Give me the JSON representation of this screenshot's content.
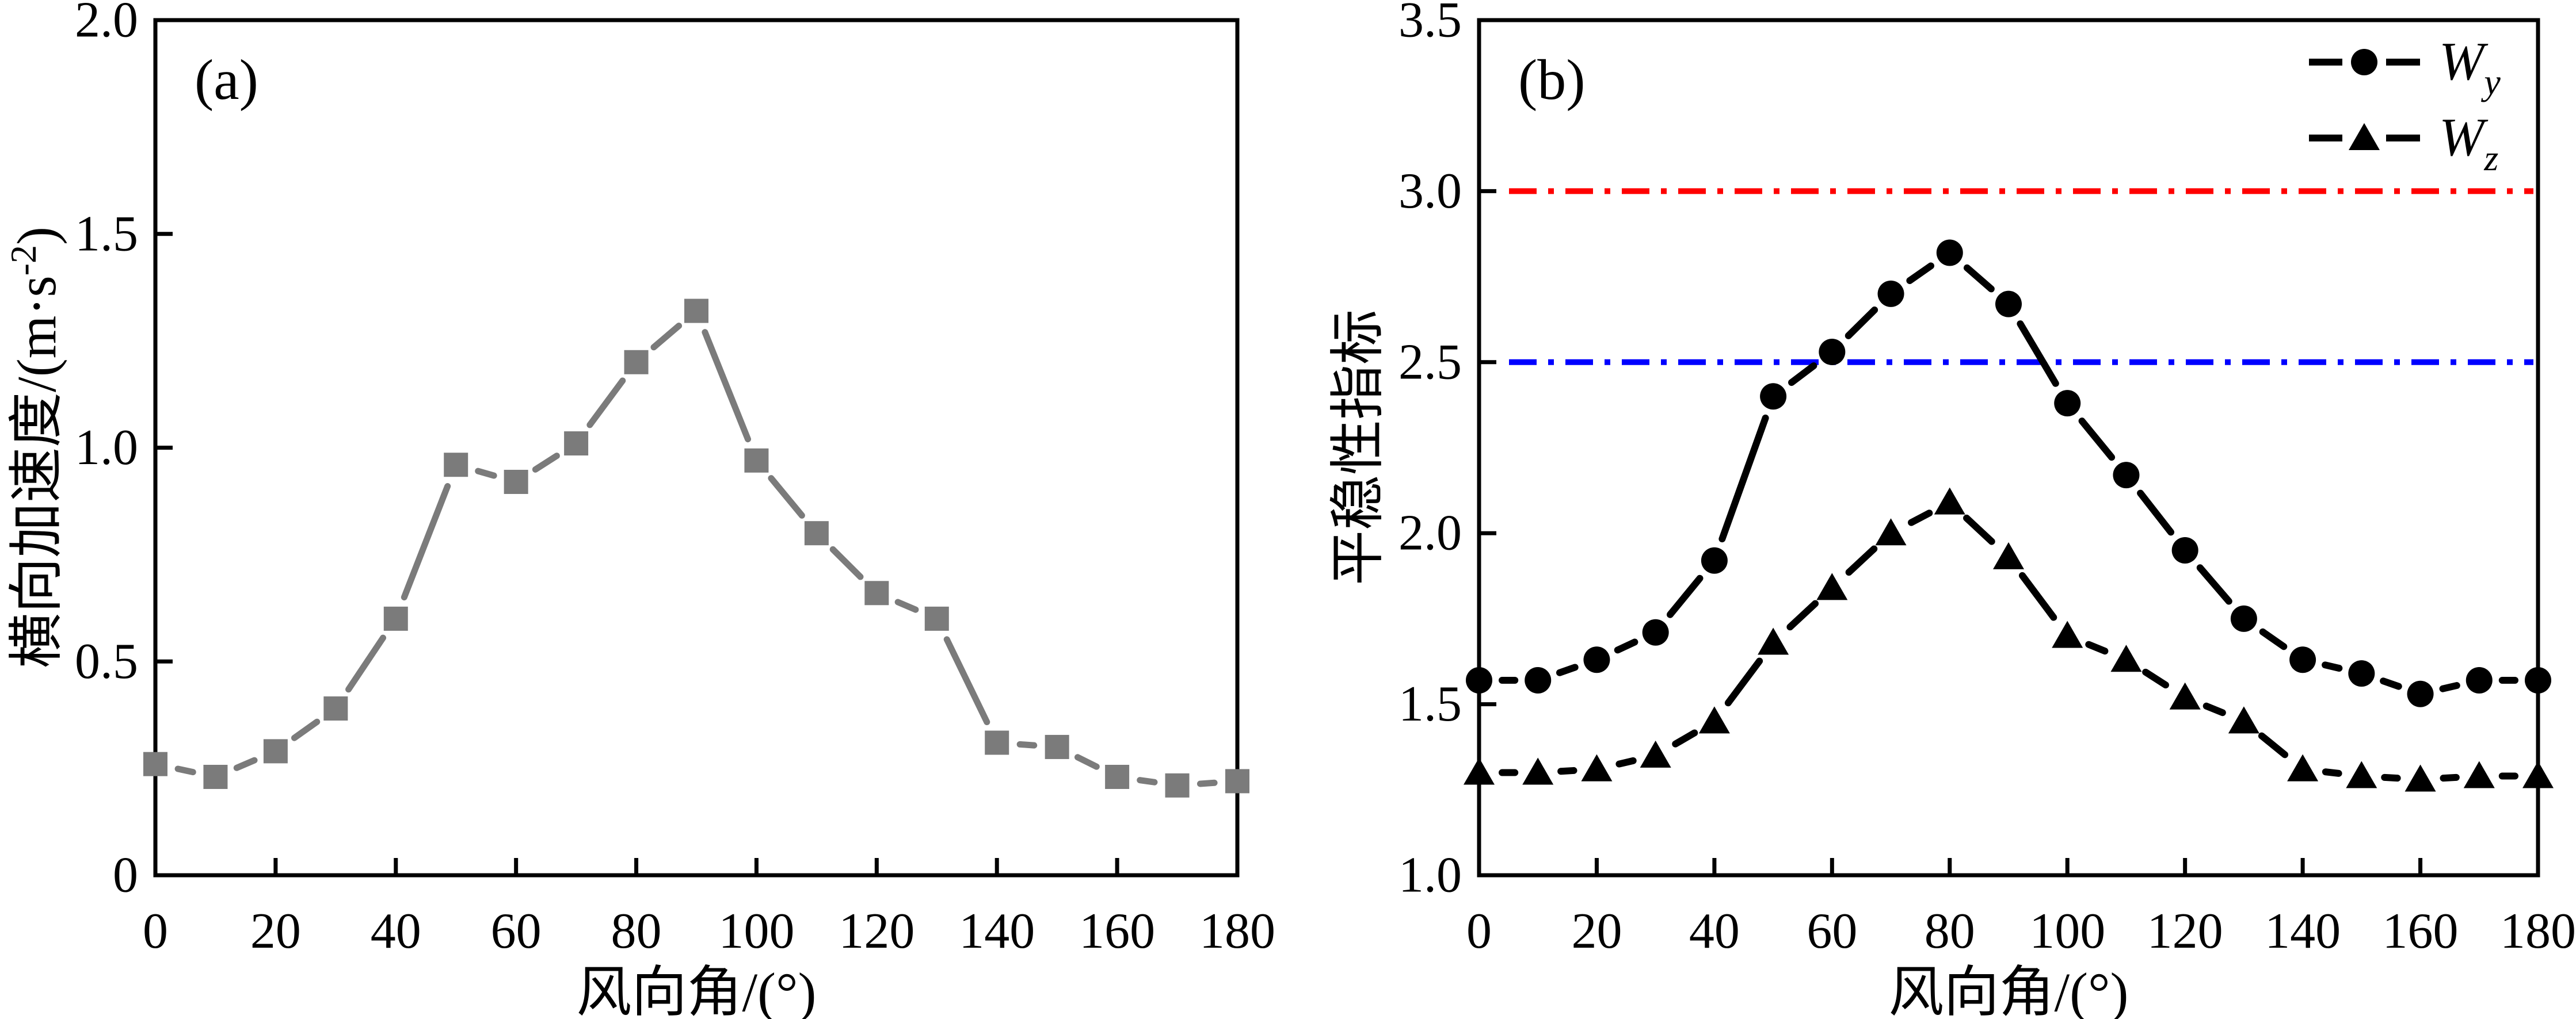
{
  "figure": {
    "background": "#ffffff",
    "panels": [
      "(a)",
      "(b)"
    ]
  },
  "chart_data": [
    {
      "type": "line",
      "panel_tag": "(a)",
      "xlabel": "风向角/(°)",
      "ylabel": "横向加速度/(m·s⁻²)",
      "ylabel_parts": {
        "prefix": "横向加速度/(m·s",
        "sup": "-2",
        "suffix": ")"
      },
      "xlim": [
        0,
        180
      ],
      "ylim": [
        0,
        2.0
      ],
      "grid": false,
      "xticks": [
        0,
        20,
        40,
        60,
        80,
        100,
        120,
        140,
        160,
        180
      ],
      "xtick_labels": [
        "0",
        "20",
        "40",
        "60",
        "80",
        "100",
        "120",
        "140",
        "160",
        "180"
      ],
      "yticks": [
        0,
        0.5,
        1.0,
        1.5,
        2.0
      ],
      "ytick_labels": [
        "0",
        "0.5",
        "1.0",
        "1.5",
        "2.0"
      ],
      "x": [
        0,
        10,
        20,
        30,
        40,
        50,
        60,
        70,
        80,
        90,
        100,
        110,
        120,
        130,
        140,
        150,
        160,
        170,
        180
      ],
      "series": [
        {
          "name": "lateral_acceleration",
          "marker": "square",
          "color": "#7b7b7b",
          "values": [
            0.26,
            0.23,
            0.29,
            0.39,
            0.6,
            0.96,
            0.92,
            1.01,
            1.2,
            1.32,
            0.97,
            0.8,
            0.66,
            0.6,
            0.31,
            0.3,
            0.23,
            0.21,
            0.22
          ]
        }
      ],
      "ref_lines": [],
      "legend": []
    },
    {
      "type": "line",
      "panel_tag": "(b)",
      "xlabel": "风向角/(°)",
      "ylabel": "平稳性指标",
      "xlim": [
        0,
        180
      ],
      "ylim": [
        1.0,
        3.5
      ],
      "grid": false,
      "xticks": [
        0,
        20,
        40,
        60,
        80,
        100,
        120,
        140,
        160,
        180
      ],
      "xtick_labels": [
        "0",
        "20",
        "40",
        "60",
        "80",
        "100",
        "120",
        "140",
        "160",
        "180"
      ],
      "yticks": [
        1.0,
        1.5,
        2.0,
        2.5,
        3.0,
        3.5
      ],
      "ytick_labels": [
        "1.0",
        "1.5",
        "2.0",
        "2.5",
        "3.0",
        "3.5"
      ],
      "x": [
        0,
        10,
        20,
        30,
        40,
        50,
        60,
        70,
        80,
        90,
        100,
        110,
        120,
        130,
        140,
        150,
        160,
        170,
        180
      ],
      "series": [
        {
          "name": "Wy",
          "legend_base": "W",
          "legend_sub": "y",
          "marker": "circle",
          "color": "#000000",
          "values": [
            1.57,
            1.57,
            1.63,
            1.71,
            1.92,
            2.4,
            2.53,
            2.7,
            2.82,
            2.67,
            2.38,
            2.17,
            1.95,
            1.75,
            1.63,
            1.59,
            1.53,
            1.57,
            1.57
          ]
        },
        {
          "name": "Wz",
          "legend_base": "W",
          "legend_sub": "z",
          "marker": "triangle",
          "color": "#000000",
          "values": [
            1.3,
            1.3,
            1.31,
            1.35,
            1.45,
            1.68,
            1.84,
            2.0,
            2.09,
            1.93,
            1.7,
            1.63,
            1.52,
            1.45,
            1.31,
            1.29,
            1.28,
            1.29,
            1.29
          ]
        }
      ],
      "ref_lines": [
        {
          "y": 3.0,
          "color": "#ff0000",
          "style": "dash-dot"
        },
        {
          "y": 2.5,
          "color": "#0000ff",
          "style": "dash-dot"
        }
      ],
      "legend_position": "top-right"
    }
  ]
}
